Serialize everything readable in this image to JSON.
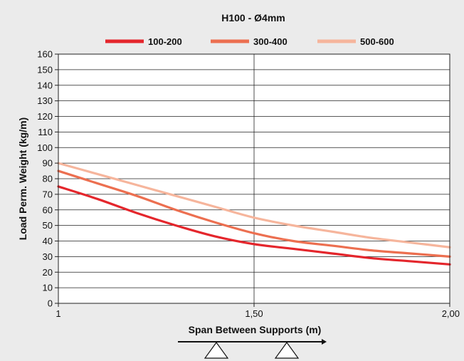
{
  "chart_data": {
    "type": "line",
    "title": "H100 - Ø4mm",
    "xlabel": "Span Between Supports (m)",
    "ylabel": "Load Perm. Weight (kg/m)",
    "xlim": [
      1,
      2
    ],
    "ylim": [
      0,
      160
    ],
    "yticks": [
      0,
      10,
      20,
      30,
      40,
      50,
      60,
      70,
      80,
      90,
      100,
      110,
      120,
      130,
      140,
      150,
      160
    ],
    "xticks": [
      {
        "value": 1,
        "label": "1"
      },
      {
        "value": 1.5,
        "label": "1,50"
      },
      {
        "value": 2,
        "label": "2,00"
      }
    ],
    "grid": true,
    "legend": "top",
    "series": [
      {
        "name": "100-200",
        "color": "#e4262c",
        "x": [
          1,
          1.1,
          1.2,
          1.3,
          1.4,
          1.5,
          1.6,
          1.7,
          1.8,
          1.9,
          2.0
        ],
        "y": [
          75,
          67,
          58,
          50,
          43,
          38,
          35,
          32,
          29,
          27,
          25
        ]
      },
      {
        "name": "300-400",
        "color": "#ec6f50",
        "x": [
          1,
          1.1,
          1.2,
          1.3,
          1.4,
          1.5,
          1.6,
          1.7,
          1.8,
          1.9,
          2.0
        ],
        "y": [
          85,
          77,
          69,
          60,
          52,
          45,
          40,
          37,
          34,
          32,
          30
        ]
      },
      {
        "name": "500-600",
        "color": "#f6b59c",
        "x": [
          1,
          1.1,
          1.2,
          1.3,
          1.4,
          1.5,
          1.6,
          1.7,
          1.8,
          1.9,
          2.0
        ],
        "y": [
          90,
          83,
          76,
          69,
          62,
          55,
          50,
          46,
          42,
          39,
          36
        ]
      }
    ]
  }
}
